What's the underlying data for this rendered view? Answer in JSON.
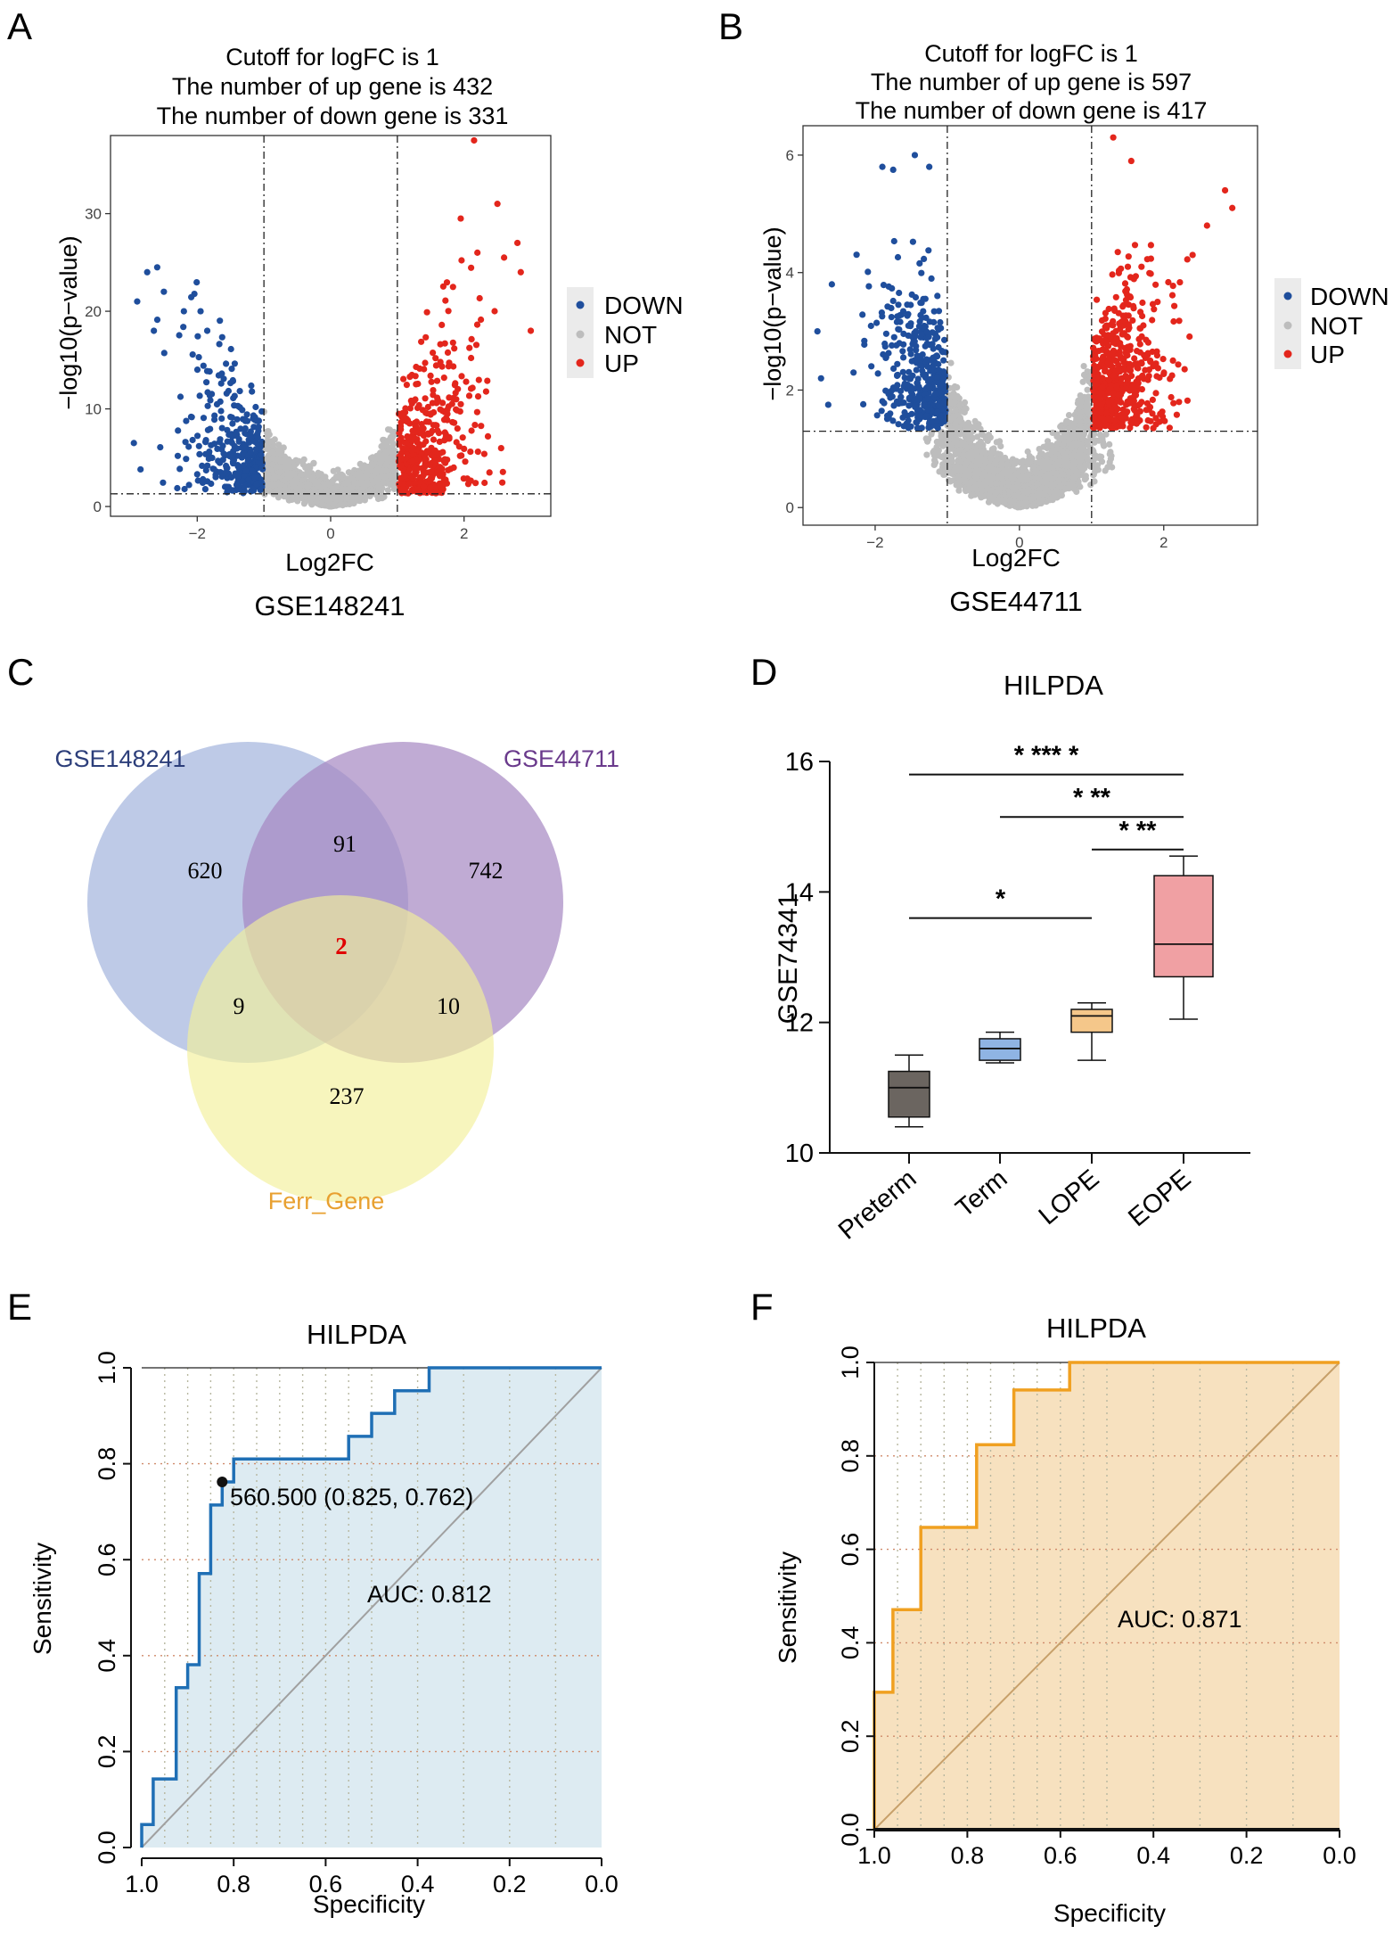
{
  "panels": {
    "A": {
      "letter": "A",
      "title_lines": [
        "Cutoff for logFC is 1",
        "The number of up gene is 432",
        "The number of down gene is 331"
      ],
      "caption": "GSE148241"
    },
    "B": {
      "letter": "B",
      "title_lines": [
        "Cutoff for logFC is 1",
        "The number of up gene is 597",
        "The number of down gene is 417"
      ],
      "caption": "GSE44711"
    },
    "C": {
      "letter": "C"
    },
    "D": {
      "letter": "D"
    },
    "E": {
      "letter": "E"
    },
    "F": {
      "letter": "F"
    }
  },
  "colors": {
    "down": "#1f4e9c",
    "not": "#bdbdbd",
    "up": "#e3261c",
    "venn_a": "#a8b8df",
    "venn_b": "#a587c2",
    "venn_c": "#f3f09a",
    "venn_a_label": "#2c3e7a",
    "venn_b_label": "#6a3a8c",
    "venn_c_label": "#e8a030",
    "roc_e_line": "#1f6fb5",
    "roc_e_fill": "#ddebf2",
    "roc_f_line": "#f0a020",
    "roc_f_fill": "#f7e1bf",
    "box_preterm": "#6b6560",
    "box_term": "#8fb4e3",
    "box_lope": "#f5c78a",
    "box_eope": "#f0a0a3"
  },
  "chart_data": [
    {
      "id": "A",
      "type": "scatter",
      "subtype": "volcano",
      "xlabel": "Log2FC",
      "ylabel": "−log10(p−value)",
      "xlim": [
        -3.3,
        3.3
      ],
      "ylim": [
        -1,
        38
      ],
      "xticks": [
        -2,
        0,
        2
      ],
      "yticks": [
        0,
        10,
        20,
        30
      ],
      "fc_cutoff": 1,
      "p_line": 1.3,
      "legend": [
        "DOWN",
        "NOT",
        "UP"
      ],
      "up_count": 432,
      "down_count": 331,
      "highlight_points": {
        "down": [
          [
            -2.9,
            21
          ],
          [
            -2.75,
            24
          ],
          [
            -2.6,
            24.5
          ],
          [
            -2.65,
            18
          ],
          [
            -2.5,
            22
          ],
          [
            -2.2,
            20
          ],
          [
            -1.95,
            20
          ],
          [
            -1.85,
            18
          ],
          [
            -2.95,
            6.5
          ],
          [
            -2.85,
            3.8
          ]
        ],
        "up": [
          [
            2.15,
            37.5
          ],
          [
            2.5,
            31
          ],
          [
            1.95,
            29.5
          ],
          [
            2.8,
            27
          ],
          [
            2.6,
            25.5
          ],
          [
            2.85,
            24
          ],
          [
            2.2,
            26
          ],
          [
            3.0,
            18
          ]
        ]
      }
    },
    {
      "id": "B",
      "type": "scatter",
      "subtype": "volcano",
      "xlabel": "Log2FC",
      "ylabel": "−log10(p−value)",
      "xlim": [
        -3.0,
        3.3
      ],
      "ylim": [
        -0.3,
        6.5
      ],
      "xticks": [
        -2,
        0,
        2
      ],
      "yticks": [
        0,
        2,
        4,
        6
      ],
      "fc_cutoff": 1,
      "p_line": 1.3,
      "legend": [
        "DOWN",
        "NOT",
        "UP"
      ],
      "up_count": 597,
      "down_count": 417,
      "highlight_points": {
        "down": [
          [
            -1.45,
            6.0
          ],
          [
            -1.25,
            5.8
          ],
          [
            -1.9,
            5.8
          ],
          [
            -1.75,
            5.75
          ],
          [
            -2.6,
            3.8
          ],
          [
            -2.8,
            3.0
          ],
          [
            -2.65,
            1.75
          ],
          [
            -2.75,
            2.2
          ]
        ],
        "up": [
          [
            1.3,
            6.3
          ],
          [
            1.55,
            5.9
          ],
          [
            2.85,
            5.4
          ],
          [
            2.95,
            5.1
          ],
          [
            2.6,
            4.8
          ],
          [
            2.4,
            4.3
          ]
        ]
      }
    },
    {
      "id": "C",
      "type": "venn",
      "sets": [
        "GSE148241",
        "GSE44711",
        "Ferr_Gene"
      ],
      "regions": {
        "A_only": "620",
        "B_only": "742",
        "C_only": "237",
        "AB": "91",
        "AC": "9",
        "BC": "10",
        "ABC": "2"
      }
    },
    {
      "id": "D",
      "type": "box",
      "title": "HILPDA",
      "ylabel": "GSE74341",
      "ylim": [
        10,
        16
      ],
      "yticks": [
        10,
        12,
        14,
        16
      ],
      "categories": [
        "Preterm",
        "Term",
        "LOPE",
        "EOPE"
      ],
      "boxes": [
        {
          "name": "Preterm",
          "min": 10.4,
          "q1": 10.55,
          "median": 11.0,
          "q3": 11.25,
          "max": 11.5
        },
        {
          "name": "Term",
          "min": 11.38,
          "q1": 11.42,
          "median": 11.6,
          "q3": 11.75,
          "max": 11.85
        },
        {
          "name": "LOPE",
          "min": 11.42,
          "q1": 11.85,
          "median": 12.1,
          "q3": 12.2,
          "max": 12.3
        },
        {
          "name": "EOPE",
          "min": 12.05,
          "q1": 12.7,
          "median": 13.2,
          "q3": 14.25,
          "max": 14.55
        }
      ],
      "significance": [
        {
          "from": "Preterm",
          "to": "EOPE",
          "label": "* *** *",
          "y": 15.8
        },
        {
          "from": "Term",
          "to": "EOPE",
          "label": "* **",
          "y": 15.15
        },
        {
          "from": "LOPE",
          "to": "EOPE",
          "label": "* **",
          "y": 14.65
        },
        {
          "from": "Preterm",
          "to": "LOPE",
          "label": "*",
          "y": 13.6
        }
      ]
    },
    {
      "id": "E",
      "type": "line",
      "subtype": "roc",
      "title": "HILPDA",
      "xlabel": "Specificity",
      "ylabel": "Sensitivity",
      "xlim": [
        1.0,
        0.0
      ],
      "ylim": [
        0,
        1
      ],
      "xticks": [
        1.0,
        0.8,
        0.6,
        0.4,
        0.2,
        0.0
      ],
      "yticks": [
        0.0,
        0.2,
        0.4,
        0.6,
        0.8,
        1.0
      ],
      "auc_label": "AUC: 0.812",
      "threshold": {
        "specificity": 0.825,
        "sensitivity": 0.762,
        "label": "560.500 (0.825, 0.762)"
      },
      "curve": [
        [
          1.0,
          0.0
        ],
        [
          1.0,
          0.048
        ],
        [
          0.975,
          0.048
        ],
        [
          0.975,
          0.143
        ],
        [
          0.925,
          0.143
        ],
        [
          0.925,
          0.333
        ],
        [
          0.9,
          0.333
        ],
        [
          0.9,
          0.381
        ],
        [
          0.875,
          0.381
        ],
        [
          0.875,
          0.571
        ],
        [
          0.85,
          0.571
        ],
        [
          0.85,
          0.714
        ],
        [
          0.825,
          0.714
        ],
        [
          0.825,
          0.762
        ],
        [
          0.8,
          0.762
        ],
        [
          0.8,
          0.81
        ],
        [
          0.55,
          0.81
        ],
        [
          0.55,
          0.857
        ],
        [
          0.5,
          0.857
        ],
        [
          0.5,
          0.905
        ],
        [
          0.45,
          0.905
        ],
        [
          0.45,
          0.952
        ],
        [
          0.375,
          0.952
        ],
        [
          0.375,
          1.0
        ],
        [
          0.0,
          1.0
        ]
      ]
    },
    {
      "id": "F",
      "type": "line",
      "subtype": "roc",
      "title": "HILPDA",
      "xlabel": "Specificity",
      "ylabel": "Sensitivity",
      "xlim": [
        1.0,
        0.0
      ],
      "ylim": [
        0,
        1
      ],
      "xticks": [
        1.0,
        0.8,
        0.6,
        0.4,
        0.2,
        0.0
      ],
      "yticks": [
        0.0,
        0.2,
        0.4,
        0.6,
        0.8,
        1.0
      ],
      "auc_label": "AUC:  0.871",
      "curve": [
        [
          1.0,
          0.0
        ],
        [
          1.0,
          0.294
        ],
        [
          0.96,
          0.294
        ],
        [
          0.96,
          0.471
        ],
        [
          0.9,
          0.471
        ],
        [
          0.9,
          0.647
        ],
        [
          0.78,
          0.647
        ],
        [
          0.78,
          0.824
        ],
        [
          0.7,
          0.824
        ],
        [
          0.7,
          0.941
        ],
        [
          0.58,
          0.941
        ],
        [
          0.58,
          1.0
        ],
        [
          0.0,
          1.0
        ]
      ]
    }
  ]
}
